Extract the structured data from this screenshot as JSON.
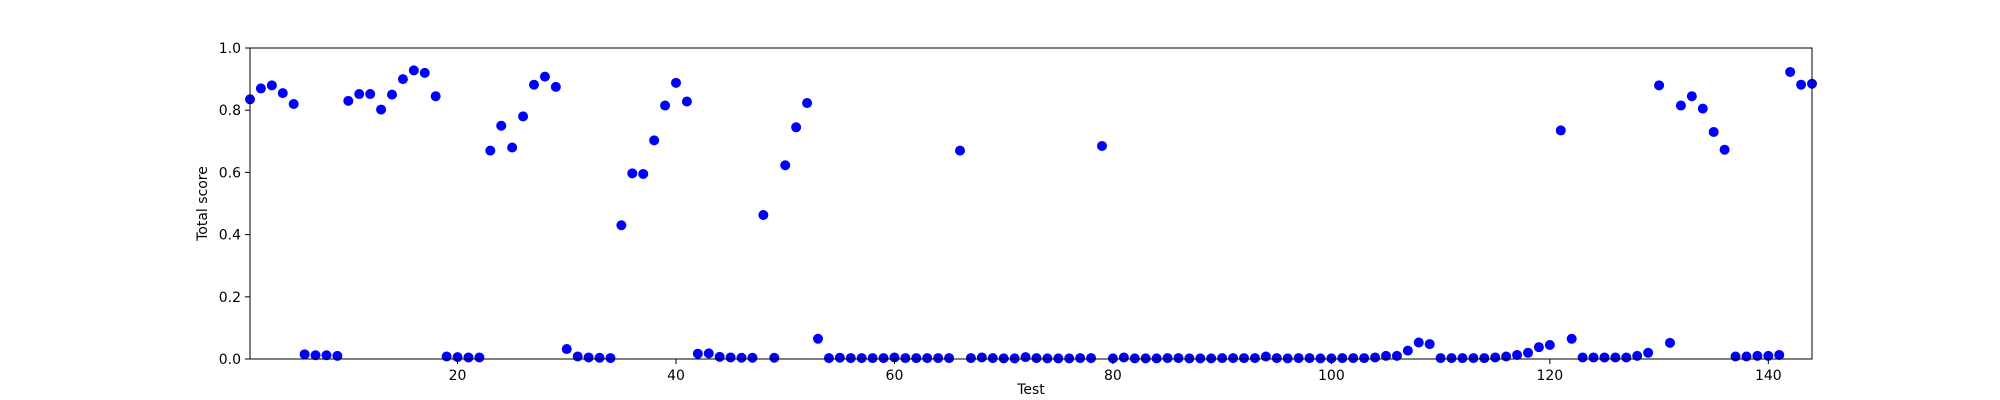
{
  "chart_data": {
    "type": "scatter",
    "title": "",
    "xlabel": "Test",
    "ylabel": "Total score",
    "xlim": [
      1,
      144
    ],
    "ylim": [
      0,
      1.0
    ],
    "xticks": [
      20,
      40,
      60,
      80,
      100,
      120,
      140
    ],
    "yticks": [
      0.0,
      0.2,
      0.4,
      0.6,
      0.8,
      1.0
    ],
    "xtick_labels": [
      "20",
      "40",
      "60",
      "80",
      "100",
      "120",
      "140"
    ],
    "ytick_labels": [
      "0.0",
      "0.2",
      "0.4",
      "0.6",
      "0.8",
      "1.0"
    ],
    "grid": false,
    "legend": "none",
    "point_color": "#0000ff",
    "series": [
      {
        "x": [
          1,
          2,
          3,
          4,
          5,
          6,
          7,
          8,
          9,
          10,
          11,
          12,
          13,
          14,
          15,
          16,
          17,
          18,
          19,
          20,
          21,
          22,
          23,
          24,
          25,
          26,
          27,
          28,
          29,
          30,
          31,
          32,
          33,
          34,
          35,
          36,
          37,
          38,
          39,
          40,
          41,
          42,
          43,
          44,
          45,
          46,
          47,
          48,
          49,
          50,
          51,
          52,
          53,
          54,
          55,
          56,
          57,
          58,
          59,
          60,
          61,
          62,
          63,
          64,
          65,
          66,
          67,
          68,
          69,
          70,
          71,
          72,
          73,
          74,
          75,
          76,
          77,
          78,
          79,
          80,
          81,
          82,
          83,
          84,
          85,
          86,
          87,
          88,
          89,
          90,
          91,
          92,
          93,
          94,
          95,
          96,
          97,
          98,
          99,
          100,
          101,
          102,
          103,
          104,
          105,
          106,
          107,
          108,
          109,
          110,
          111,
          112,
          113,
          114,
          115,
          116,
          117,
          118,
          119,
          120,
          121,
          122,
          123,
          124,
          125,
          126,
          127,
          128,
          129,
          130,
          131,
          132,
          133,
          134,
          135,
          136,
          137,
          138,
          139,
          140,
          141,
          142,
          143,
          144
        ],
        "y": [
          0.835,
          0.87,
          0.88,
          0.855,
          0.82,
          0.015,
          0.012,
          0.012,
          0.01,
          0.83,
          0.852,
          0.852,
          0.802,
          0.85,
          0.9,
          0.928,
          0.92,
          0.845,
          0.008,
          0.006,
          0.005,
          0.005,
          0.67,
          0.75,
          0.68,
          0.78,
          0.882,
          0.908,
          0.875,
          0.032,
          0.008,
          0.005,
          0.004,
          0.003,
          0.43,
          0.597,
          0.595,
          0.703,
          0.815,
          0.888,
          0.828,
          0.017,
          0.018,
          0.007,
          0.005,
          0.004,
          0.004,
          0.463,
          0.004,
          0.623,
          0.745,
          0.823,
          0.065,
          0.003,
          0.004,
          0.003,
          0.003,
          0.003,
          0.003,
          0.005,
          0.003,
          0.003,
          0.003,
          0.003,
          0.003,
          0.67,
          0.003,
          0.005,
          0.003,
          0.002,
          0.002,
          0.006,
          0.003,
          0.002,
          0.002,
          0.002,
          0.003,
          0.003,
          0.685,
          0.002,
          0.005,
          0.002,
          0.002,
          0.002,
          0.003,
          0.003,
          0.002,
          0.002,
          0.002,
          0.003,
          0.003,
          0.003,
          0.003,
          0.008,
          0.003,
          0.002,
          0.003,
          0.003,
          0.002,
          0.002,
          0.003,
          0.003,
          0.003,
          0.005,
          0.01,
          0.01,
          0.027,
          0.053,
          0.048,
          0.003,
          0.003,
          0.003,
          0.003,
          0.003,
          0.005,
          0.008,
          0.013,
          0.02,
          0.038,
          0.045,
          0.735,
          0.065,
          0.005,
          0.005,
          0.005,
          0.005,
          0.005,
          0.01,
          0.02,
          0.88,
          0.052,
          0.815,
          0.845,
          0.805,
          0.73,
          0.673,
          0.008,
          0.008,
          0.01,
          0.01,
          0.013,
          0.923,
          0.882,
          0.885
        ]
      }
    ]
  }
}
